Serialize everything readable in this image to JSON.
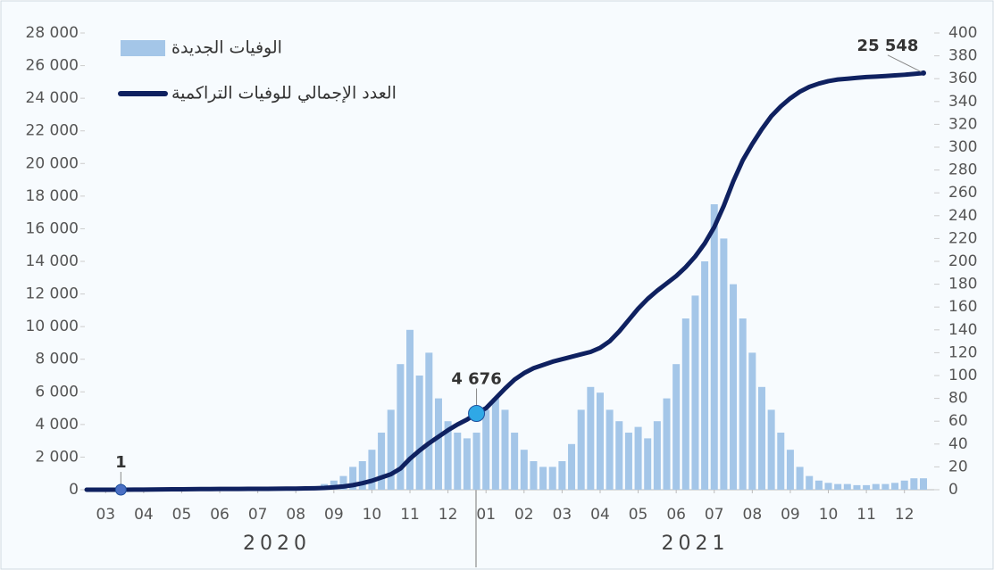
{
  "chart_data": {
    "type": "bar-line",
    "x": [
      2,
      2.25,
      2.5,
      2.75,
      3,
      3.25,
      3.5,
      3.75,
      4,
      4.25,
      4.5,
      4.75,
      5,
      5.25,
      5.5,
      5.75,
      6,
      6.25,
      6.5,
      6.75,
      7,
      7.25,
      7.5,
      7.75,
      8,
      8.25,
      8.5,
      8.75,
      9,
      9.25,
      9.5,
      9.75,
      10,
      10.25,
      10.5,
      10.75,
      11,
      11.25,
      11.5,
      11.75,
      12,
      12.25,
      12.5,
      12.75,
      13,
      13.25,
      13.5,
      13.75,
      14,
      14.25,
      14.5,
      14.75,
      15,
      15.25,
      15.5,
      15.75,
      16,
      16.25,
      16.5,
      16.75,
      17,
      17.25,
      17.5,
      17.75,
      18,
      18.25,
      18.5,
      18.75,
      19,
      19.25,
      19.5,
      19.75,
      20,
      20.25,
      20.5,
      20.75,
      21,
      21.25,
      21.5,
      21.75,
      22,
      22.25,
      22.5,
      22.75,
      23,
      23.25,
      23.5,
      23.75,
      24
    ],
    "series": [
      {
        "name": "الوفيات الجديدة",
        "color": "#a4c6e8",
        "axis": "y2",
        "values": [
          0,
          0,
          0,
          0,
          0,
          1,
          1,
          1,
          1,
          1,
          1,
          1,
          1,
          1,
          1,
          1,
          1,
          1,
          1,
          1,
          1,
          1,
          1,
          2,
          3,
          5,
          8,
          12,
          20,
          25,
          35,
          50,
          70,
          110,
          140,
          100,
          120,
          80,
          60,
          50,
          45,
          50,
          70,
          80,
          70,
          50,
          35,
          25,
          20,
          20,
          25,
          40,
          70,
          90,
          85,
          70,
          60,
          50,
          55,
          45,
          60,
          80,
          110,
          150,
          170,
          200,
          250,
          220,
          180,
          150,
          120,
          90,
          70,
          50,
          35,
          20,
          12,
          8,
          6,
          5,
          5,
          4,
          4,
          5,
          5,
          6,
          8,
          10,
          10
        ]
      },
      {
        "name": "العدد الإجمالي للوفيات التراكمية",
        "color": "#0f2160",
        "values": [
          0,
          0,
          0,
          0,
          1,
          5,
          10,
          15,
          20,
          25,
          30,
          35,
          40,
          42,
          45,
          48,
          50,
          52,
          55,
          58,
          60,
          65,
          70,
          80,
          90,
          110,
          150,
          200,
          280,
          400,
          550,
          750,
          950,
          1300,
          1900,
          2400,
          2850,
          3250,
          3650,
          4000,
          4300,
          4676,
          5000,
          5600,
          6200,
          6750,
          7150,
          7450,
          7650,
          7850,
          8000,
          8150,
          8300,
          8450,
          8700,
          9100,
          9700,
          10400,
          11100,
          11700,
          12200,
          12650,
          13100,
          13650,
          14300,
          15100,
          16100,
          17400,
          18900,
          20200,
          21200,
          22100,
          22900,
          23500,
          24000,
          24400,
          24700,
          24900,
          25050,
          25150,
          25200,
          25250,
          25300,
          25330,
          25360,
          25400,
          25440,
          25490,
          25548
        ]
      }
    ],
    "xlim": [
      2,
      24
    ],
    "xticks": [
      {
        "value": 2.5,
        "label": "03"
      },
      {
        "value": 3.5,
        "label": "04"
      },
      {
        "value": 4.5,
        "label": "05"
      },
      {
        "value": 5.5,
        "label": "06"
      },
      {
        "value": 6.5,
        "label": "07"
      },
      {
        "value": 7.5,
        "label": "08"
      },
      {
        "value": 8.5,
        "label": "09"
      },
      {
        "value": 9.5,
        "label": "10"
      },
      {
        "value": 10.5,
        "label": "11"
      },
      {
        "value": 11.5,
        "label": "12"
      },
      {
        "value": 12.5,
        "label": "01"
      },
      {
        "value": 13.5,
        "label": "02"
      },
      {
        "value": 14.5,
        "label": "03"
      },
      {
        "value": 15.5,
        "label": "04"
      },
      {
        "value": 16.5,
        "label": "05"
      },
      {
        "value": 17.5,
        "label": "06"
      },
      {
        "value": 18.5,
        "label": "07"
      },
      {
        "value": 19.5,
        "label": "08"
      },
      {
        "value": 20.5,
        "label": "09"
      },
      {
        "value": 21.5,
        "label": "10"
      },
      {
        "value": 22.5,
        "label": "11"
      },
      {
        "value": 23.5,
        "label": "12"
      }
    ],
    "years": [
      {
        "value": 7,
        "label": "2020"
      },
      {
        "value": 18,
        "label": "2021"
      }
    ],
    "ylim": [
      0,
      28000
    ],
    "yticks": [
      0,
      {
        "value": 2000,
        "label": "2 000"
      },
      {
        "value": 4000,
        "label": "4 000"
      },
      {
        "value": 6000,
        "label": "6 000"
      },
      {
        "value": 8000,
        "label": "8 000"
      },
      {
        "value": 10000,
        "label": "10 000"
      },
      {
        "value": 12000,
        "label": "12 000"
      },
      {
        "value": 14000,
        "label": "14 000"
      },
      {
        "value": 16000,
        "label": "16 000"
      },
      {
        "value": 18000,
        "label": "18 000"
      },
      {
        "value": 20000,
        "label": "20 000"
      },
      {
        "value": 22000,
        "label": "22 000"
      },
      {
        "value": 24000,
        "label": "24 000"
      },
      {
        "value": 26000,
        "label": "26 000"
      },
      {
        "value": 28000,
        "label": "28 000"
      }
    ],
    "y2lim": [
      0,
      400
    ],
    "y2ticks": [
      0,
      20,
      40,
      60,
      80,
      100,
      120,
      140,
      160,
      180,
      200,
      220,
      240,
      260,
      280,
      300,
      320,
      340,
      360,
      380,
      400
    ],
    "annotations": [
      {
        "x": 2.9,
        "value": 1
      },
      {
        "x": 12.25,
        "value": 4676,
        "label": "4 676"
      },
      {
        "x": 24,
        "value": 25548,
        "label": "25 548"
      }
    ],
    "legend": "top-left"
  }
}
